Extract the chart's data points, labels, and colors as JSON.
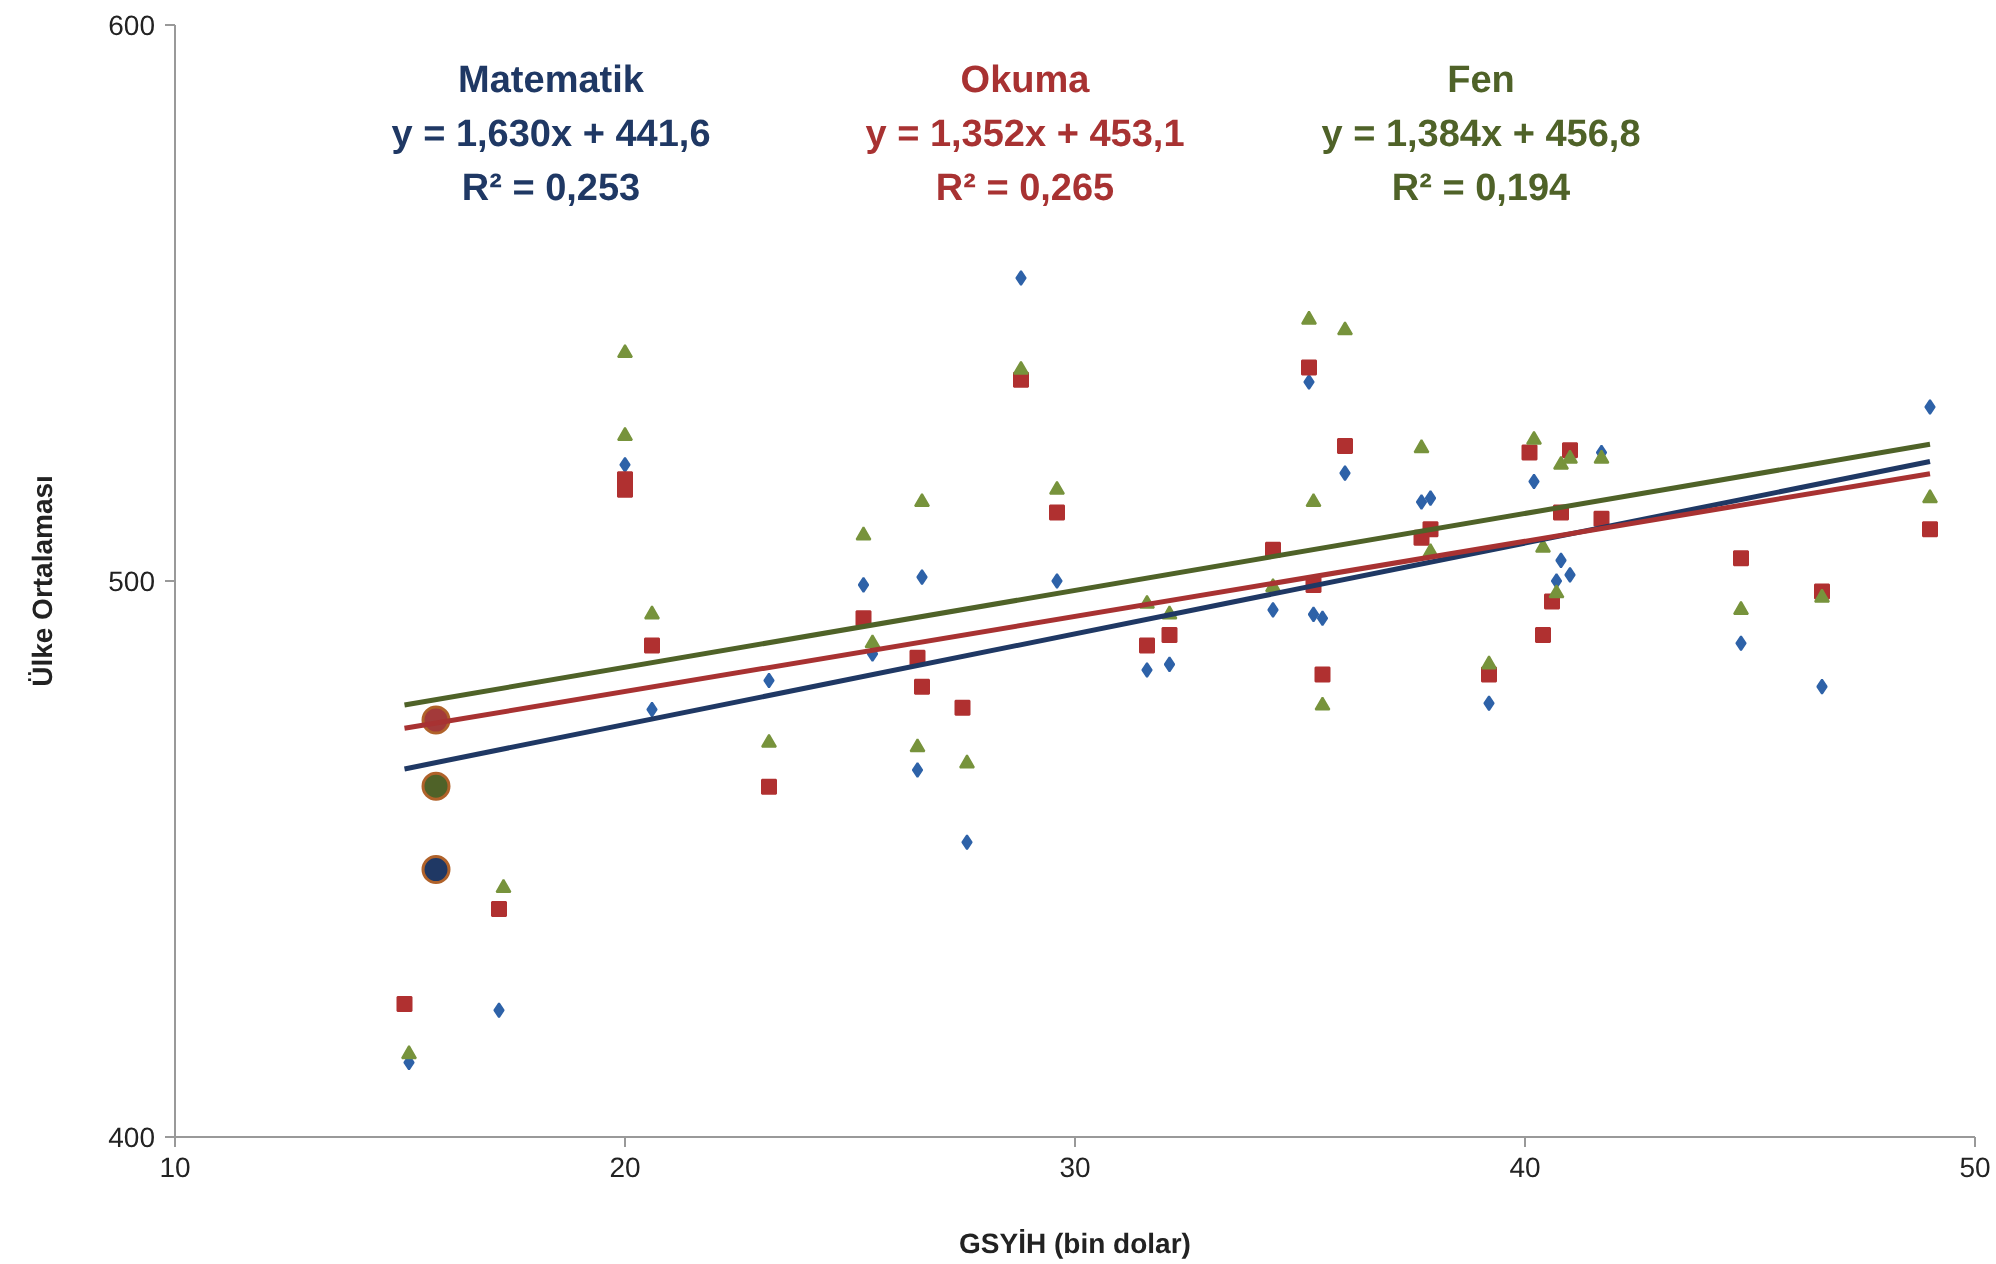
{
  "chart_data": {
    "type": "scatter",
    "xlabel": "GSYİH (bin dolar)",
    "ylabel": "Ülke Ortalaması",
    "xlim": [
      10,
      50
    ],
    "ylim": [
      400,
      600
    ],
    "xticks": [
      10,
      20,
      30,
      40,
      50
    ],
    "yticks": [
      400,
      500,
      600
    ],
    "grid": false,
    "annotations": [
      "Matematik\ny = 1,630x + 441,6\nR² = 0,253",
      "Okuma\ny = 1,352x + 453,1\nR² = 0,265",
      "Fen\ny = 1,384x + 456,8\nR² = 0,194"
    ],
    "series": [
      {
        "marker": "diamond",
        "color": "#2e62a8",
        "x": [
          15.2,
          17.2,
          20.0,
          20.6,
          23.2,
          25.3,
          25.5,
          26.6,
          26.5,
          27.6,
          28.8,
          29.6,
          31.6,
          32.1,
          34.4,
          35.2,
          35.3,
          35.5,
          36.0,
          37.7,
          37.9,
          39.2,
          40.2,
          40.8,
          40.7,
          41.0,
          41.7,
          44.8,
          46.6,
          49.0
        ],
        "values": [
          413.4,
          422.8,
          520.9,
          476.9,
          482.1,
          499.3,
          486.9,
          500.7,
          466.0,
          453.0,
          554.5,
          500.0,
          484.0,
          485.0,
          494.8,
          535.8,
          494.0,
          493.3,
          519.4,
          514.2,
          514.9,
          478.0,
          517.9,
          503.7,
          500.0,
          501.1,
          523.1,
          488.8,
          481.0,
          531.3
        ]
      },
      {
        "marker": "square",
        "color": "#b03030",
        "x": [
          15.1,
          17.2,
          20.0,
          20.0,
          20.6,
          23.2,
          25.3,
          26.5,
          26.6,
          27.5,
          28.8,
          29.6,
          31.6,
          32.1,
          34.4,
          35.2,
          35.3,
          35.5,
          36.0,
          37.7,
          37.9,
          39.2,
          40.1,
          40.4,
          40.6,
          40.8,
          41.0,
          41.7,
          44.8,
          46.6,
          49.0
        ],
        "values": [
          423.9,
          441.0,
          518.3,
          516.4,
          488.4,
          463.0,
          493.3,
          486.2,
          481.0,
          477.2,
          536.2,
          512.3,
          488.4,
          490.3,
          505.6,
          538.4,
          499.3,
          483.2,
          524.3,
          507.8,
          509.3,
          483.2,
          523.1,
          490.3,
          496.3,
          512.3,
          523.5,
          511.2,
          504.1,
          498.1,
          509.3
        ]
      },
      {
        "marker": "triangle",
        "color": "#77933c",
        "x": [
          15.2,
          17.3,
          20.0,
          20.0,
          20.6,
          23.2,
          25.3,
          25.5,
          26.6,
          26.5,
          27.6,
          28.8,
          29.6,
          31.6,
          32.1,
          34.4,
          35.2,
          35.3,
          35.5,
          36.0,
          37.7,
          37.9,
          39.2,
          40.2,
          40.4,
          40.7,
          40.8,
          41.0,
          41.7,
          44.8,
          46.6,
          49.0
        ],
        "values": [
          414.9,
          444.8,
          541.0,
          526.1,
          494.0,
          470.9,
          508.2,
          488.8,
          514.2,
          470.1,
          467.2,
          538.0,
          516.4,
          495.9,
          494.0,
          498.9,
          547.0,
          514.2,
          477.6,
          545.1,
          523.9,
          505.2,
          485.0,
          525.4,
          506.0,
          497.8,
          520.9,
          522.0,
          522.0,
          494.8,
          497.0,
          514.9
        ]
      },
      {
        "marker": "circle",
        "color": "#a33a3a",
        "x": [
          15.8
        ],
        "values": [
          475.0
        ]
      },
      {
        "marker": "circle",
        "color": "#4f6228",
        "x": [
          15.8
        ],
        "values": [
          463.1
        ]
      },
      {
        "marker": "circle",
        "color": "#1f3864",
        "x": [
          15.8
        ],
        "values": [
          448.1
        ]
      },
      {
        "type": "line",
        "color": "#1f3864",
        "x": [
          15.1,
          49.0
        ],
        "values": [
          466.2,
          521.5
        ]
      },
      {
        "type": "line",
        "color": "#a83232",
        "x": [
          15.1,
          49.0
        ],
        "values": [
          473.5,
          519.3
        ]
      },
      {
        "type": "line",
        "color": "#4f6228",
        "x": [
          15.1,
          49.0
        ],
        "values": [
          477.7,
          524.6
        ]
      }
    ]
  }
}
